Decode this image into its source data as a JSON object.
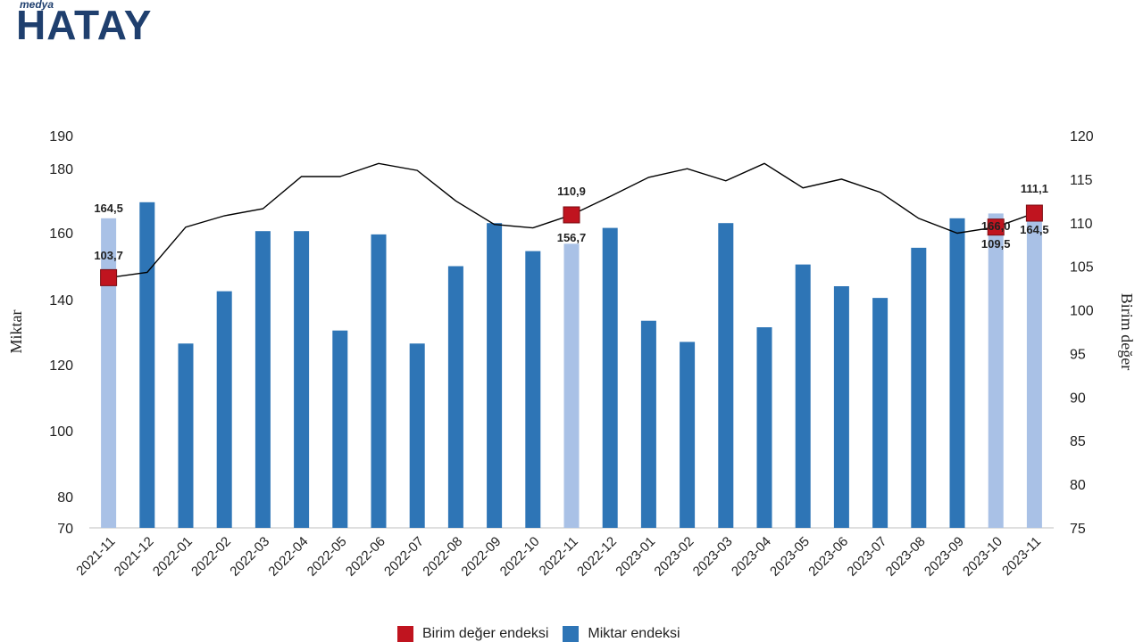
{
  "logo": {
    "small": "medya",
    "big": "HATAY"
  },
  "colors": {
    "bar_dark": "#2e75b6",
    "bar_light": "#a9c1e6",
    "marker": "#c0141f",
    "line": "#000000",
    "axis": "#bfbfbf"
  },
  "chart_data": {
    "type": "bar",
    "categories": [
      "2021-11",
      "2021-12",
      "2022-01",
      "2022-02",
      "2022-03",
      "2022-04",
      "2022-05",
      "2022-06",
      "2022-07",
      "2022-08",
      "2022-09",
      "2022-10",
      "2022-11",
      "2022-12",
      "2023-01",
      "2023-02",
      "2023-03",
      "2023-04",
      "2023-05",
      "2023-06",
      "2023-07",
      "2023-08",
      "2023-09",
      "2023-10",
      "2023-11"
    ],
    "ylabel_left": "Miktar",
    "ylabel_right": "Birim değer",
    "left_ticks": [
      "190",
      "180",
      "160",
      "140",
      "120",
      "100",
      "80",
      "70"
    ],
    "right_ticks": [
      "120",
      "115",
      "110",
      "105",
      "100",
      "95",
      "90",
      "85",
      "80",
      "75"
    ],
    "ylim_left": [
      70,
      190
    ],
    "ylim_right": [
      75,
      120
    ],
    "series": [
      {
        "name": "Miktar endeksi",
        "axis": "left",
        "values": [
          164.5,
          169.5,
          126.5,
          142.5,
          160.5,
          160.5,
          130.5,
          159.5,
          126.5,
          150.0,
          163.0,
          154.5,
          156.7,
          161.5,
          133.5,
          127.0,
          163.0,
          131.5,
          150.5,
          144.0,
          140.5,
          155.5,
          164.5,
          166.0,
          164.5
        ],
        "highlighted_indices": [
          0,
          12,
          23,
          24
        ]
      },
      {
        "name": "Birim değer endeksi",
        "axis": "right",
        "values": [
          103.7,
          104.3,
          109.5,
          110.8,
          111.6,
          115.3,
          115.3,
          116.8,
          116.0,
          112.5,
          109.8,
          109.4,
          110.9,
          113.0,
          115.2,
          116.2,
          114.8,
          116.8,
          114.0,
          115.0,
          113.5,
          110.5,
          108.8,
          109.5,
          111.1
        ],
        "marker_indices": [
          0,
          12,
          23,
          24
        ]
      }
    ],
    "data_labels": [
      {
        "index": 0,
        "bar": "164,5",
        "line": "103,7"
      },
      {
        "index": 12,
        "bar": "156,7",
        "line": "110,9"
      },
      {
        "index": 23,
        "bar": "166,0",
        "line": "109,5"
      },
      {
        "index": 24,
        "bar": "164,5",
        "line": "111,1"
      }
    ],
    "legend": [
      "Birim değer endeksi",
      "Miktar endeksi"
    ],
    "legend_position": "bottom",
    "grid": false
  }
}
